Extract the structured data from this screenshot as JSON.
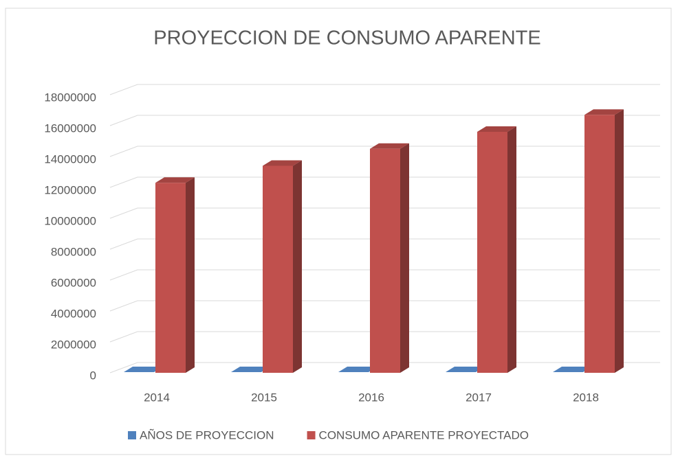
{
  "chart_data": {
    "type": "bar3d",
    "title": "PROYECCION DE CONSUMO APARENTE",
    "categories": [
      "2014",
      "2015",
      "2016",
      "2017",
      "2018"
    ],
    "series": [
      {
        "name": "AÑOS DE PROYECCION",
        "color": "#4f81bd",
        "values": [
          2014,
          2015,
          2016,
          2017,
          2018
        ]
      },
      {
        "name": "CONSUMO APARENTE PROYECTADO",
        "color": "#c0504d",
        "values": [
          12300000,
          13400000,
          14500000,
          15600000,
          16700000
        ]
      }
    ],
    "ylim": [
      0,
      18000000
    ],
    "yticks": [
      0,
      2000000,
      4000000,
      6000000,
      8000000,
      10000000,
      12000000,
      14000000,
      16000000,
      18000000
    ],
    "grid": true,
    "legend": "bottom"
  }
}
